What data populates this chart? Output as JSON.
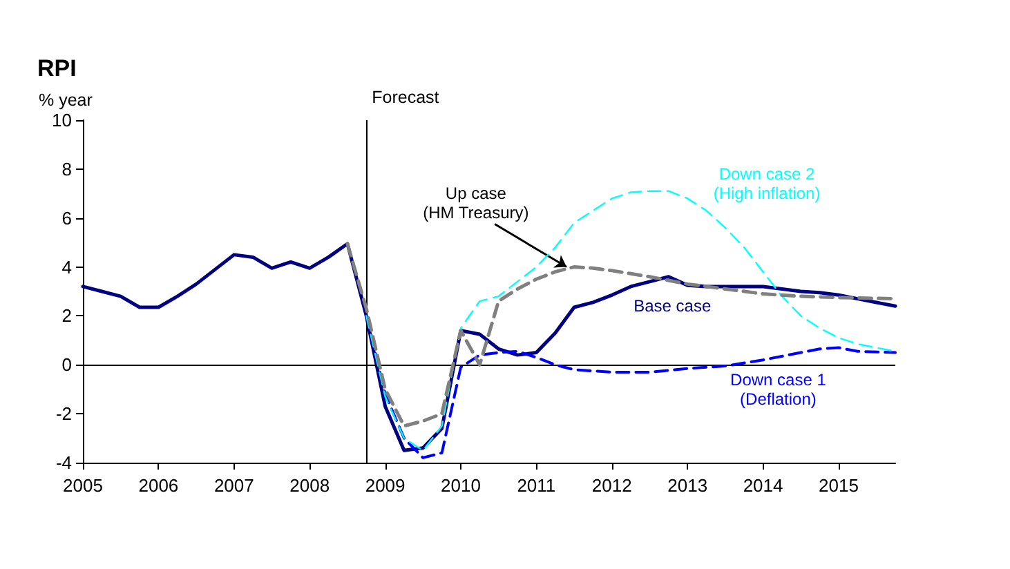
{
  "chart_data": {
    "type": "line",
    "title": "RPI",
    "ylabel": "% year",
    "xlim": [
      2005,
      2015.75
    ],
    "xticks": [
      2005,
      2006,
      2007,
      2008,
      2009,
      2010,
      2011,
      2012,
      2013,
      2014,
      2015
    ],
    "ylim": [
      -4,
      10
    ],
    "yticks": [
      -4,
      -2,
      0,
      2,
      4,
      6,
      8,
      10
    ],
    "grid": false,
    "legend": false,
    "marker": "none",
    "ref_lines": [
      {
        "axis": "x",
        "value": 2008.75,
        "label": "Forecast"
      },
      {
        "axis": "y",
        "value": 0,
        "label": null,
        "color": "#000000"
      }
    ],
    "series": [
      {
        "name": "Up case\n(HM Treasury)",
        "color": "#808080",
        "line_style": "dashed",
        "x": [
          2008.5,
          2008.75,
          2009,
          2009.25,
          2009.5,
          2009.75,
          2010,
          2010.25,
          2010.5,
          2010.75,
          2011,
          2011.25,
          2011.5,
          2011.75,
          2012,
          2012.5,
          2013,
          2013.5,
          2014,
          2014.5,
          2015,
          2015.75
        ],
        "values": [
          4.95,
          2.3,
          -1.0,
          -2.5,
          -2.3,
          -2.0,
          1.4,
          0.0,
          2.6,
          3.1,
          3.5,
          3.8,
          4.0,
          3.95,
          3.85,
          3.6,
          3.3,
          3.1,
          2.9,
          2.8,
          2.75,
          2.7
        ]
      },
      {
        "name": "Down case 2\n(High inflation)",
        "color": "#00ffff",
        "line_style": "dashed",
        "x": [
          2008.75,
          2009,
          2009.25,
          2009.5,
          2009.75,
          2010,
          2010.25,
          2010.5,
          2010.75,
          2011,
          2011.25,
          2011.5,
          2011.75,
          2012,
          2012.25,
          2012.5,
          2012.75,
          2013,
          2013.25,
          2013.5,
          2013.75,
          2014,
          2014.25,
          2014.5,
          2014.75,
          2015,
          2015.25,
          2015.5,
          2015.75
        ],
        "values": [
          2.0,
          -1.3,
          -3.0,
          -3.5,
          -2.5,
          1.5,
          2.6,
          2.8,
          3.4,
          4.0,
          4.8,
          5.8,
          6.3,
          6.8,
          7.05,
          7.1,
          7.1,
          6.8,
          6.3,
          5.6,
          4.8,
          3.8,
          2.8,
          2.0,
          1.5,
          1.1,
          0.85,
          0.7,
          0.55
        ]
      },
      {
        "name": "Down case 1\n(Deflation)",
        "color": "#0000ff",
        "line_style": "dashed",
        "x": [
          2008.75,
          2009,
          2009.25,
          2009.5,
          2009.75,
          2010,
          2010.25,
          2010.5,
          2010.75,
          2011,
          2011.25,
          2011.5,
          2012,
          2012.5,
          2013,
          2013.5,
          2014,
          2014.5,
          2014.75,
          2015,
          2015.25,
          2015.75
        ],
        "values": [
          2.0,
          -1.2,
          -3.0,
          -3.8,
          -3.6,
          -0.1,
          0.4,
          0.5,
          0.55,
          0.3,
          0.0,
          -0.2,
          -0.3,
          -0.3,
          -0.15,
          -0.05,
          0.2,
          0.5,
          0.65,
          0.7,
          0.55,
          0.5
        ]
      },
      {
        "name": "Base case",
        "color": "#000080",
        "line_style": "solid",
        "x": [
          2005,
          2005.25,
          2005.5,
          2005.75,
          2006,
          2006.25,
          2006.5,
          2006.75,
          2007,
          2007.25,
          2007.5,
          2007.75,
          2008,
          2008.25,
          2008.5,
          2008.75,
          2009,
          2009.25,
          2009.5,
          2009.75,
          2010,
          2010.25,
          2010.5,
          2010.75,
          2011,
          2011.25,
          2011.5,
          2011.75,
          2012,
          2012.25,
          2012.5,
          2012.75,
          2013,
          2013.25,
          2013.5,
          2013.75,
          2014,
          2014.25,
          2014.5,
          2014.75,
          2015,
          2015.25,
          2015.5,
          2015.75
        ],
        "values": [
          3.2,
          3.0,
          2.8,
          2.35,
          2.35,
          2.8,
          3.3,
          3.9,
          4.5,
          4.4,
          3.95,
          4.2,
          3.95,
          4.4,
          4.95,
          2.0,
          -1.7,
          -3.5,
          -3.4,
          -2.6,
          1.4,
          1.25,
          0.65,
          0.4,
          0.5,
          1.3,
          2.35,
          2.55,
          2.85,
          3.2,
          3.4,
          3.6,
          3.25,
          3.2,
          3.2,
          3.2,
          3.2,
          3.1,
          3.0,
          2.95,
          2.85,
          2.7,
          2.55,
          2.4
        ]
      }
    ]
  }
}
